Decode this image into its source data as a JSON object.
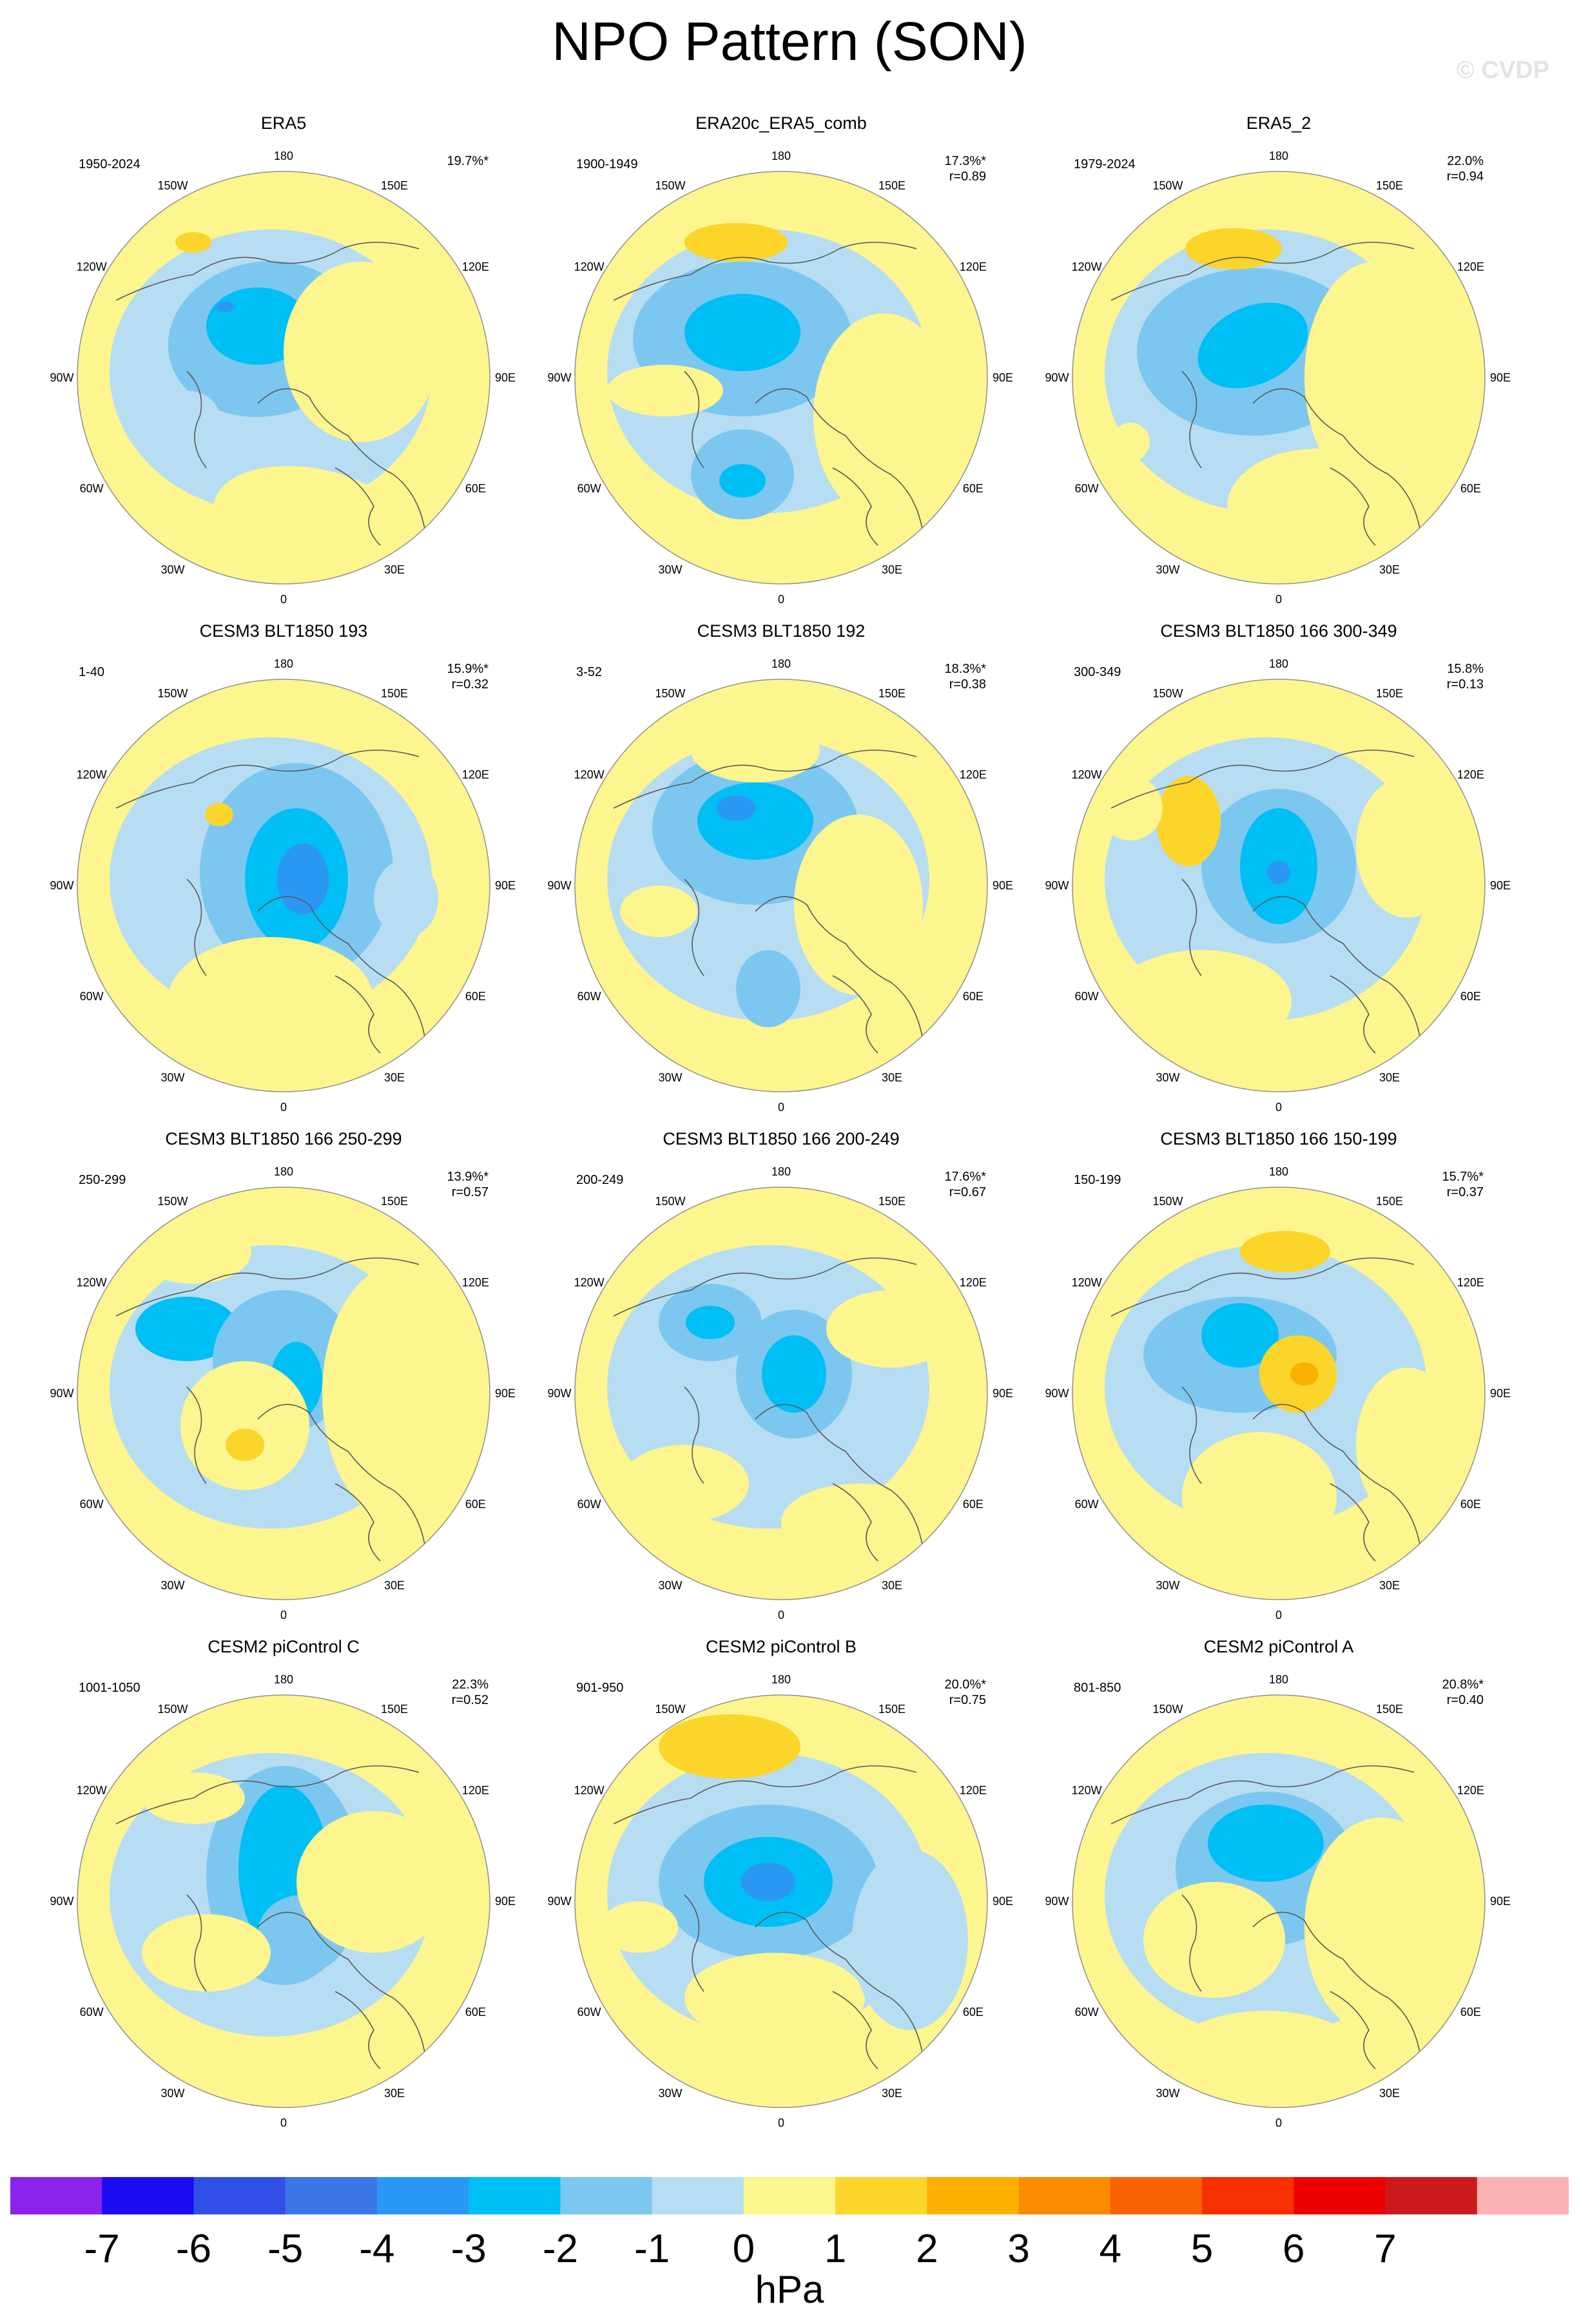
{
  "title": "NPO Pattern (SON)",
  "watermark": "© CVDP",
  "lon_labels": [
    "180",
    "150E",
    "120E",
    "90E",
    "60E",
    "30E",
    "0",
    "30W",
    "60W",
    "90W",
    "120W",
    "150W"
  ],
  "colors": {
    "-7": "#8b22ee",
    "-6": "#1b0cf2",
    "-5": "#2f4fe8",
    "-4": "#3b76e6",
    "-3": "#2a98f2",
    "-2": "#00bff5",
    "-1": "#7cc7f0",
    "0a": "#b7ddf3",
    "0b": "#fdf58e",
    "1": "#fcd52a",
    "2": "#fbb000",
    "3": "#fb8b00",
    "4": "#fa6100",
    "5": "#f82f00",
    "6": "#ee0000",
    "7": "#cc1a1a",
    "8": "#fbb2b2",
    "land": "#5a5a5a",
    "frame": "#909090"
  },
  "panels": [
    {
      "id": "era5",
      "title": "ERA5",
      "period": "1950-2024",
      "pct": "19.7%*",
      "r": ""
    },
    {
      "id": "era20c",
      "title": "ERA20c_ERA5_comb",
      "period": "1900-1949",
      "pct": "17.3%*",
      "r": "r=0.89"
    },
    {
      "id": "era5_2",
      "title": "ERA5_2",
      "period": "1979-2024",
      "pct": "22.0%",
      "r": "r=0.94"
    },
    {
      "id": "cesm3_193",
      "title": "CESM3 BLT1850 193",
      "period": "1-40",
      "pct": "15.9%*",
      "r": "r=0.32"
    },
    {
      "id": "cesm3_192",
      "title": "CESM3 BLT1850 192",
      "period": "3-52",
      "pct": "18.3%*",
      "r": "r=0.38"
    },
    {
      "id": "cesm3_166_300",
      "title": "CESM3 BLT1850 166 300-349",
      "period": "300-349",
      "pct": "15.8%",
      "r": "r=0.13"
    },
    {
      "id": "cesm3_166_250",
      "title": "CESM3 BLT1850 166 250-299",
      "period": "250-299",
      "pct": "13.9%*",
      "r": "r=0.57"
    },
    {
      "id": "cesm3_166_200",
      "title": "CESM3 BLT1850 166 200-249",
      "period": "200-249",
      "pct": "17.6%*",
      "r": "r=0.67"
    },
    {
      "id": "cesm3_166_150",
      "title": "CESM3 BLT1850 166 150-199",
      "period": "150-199",
      "pct": "15.7%*",
      "r": "r=0.37"
    },
    {
      "id": "cesm2_c",
      "title": "CESM2 piControl C",
      "period": "1001-1050",
      "pct": "22.3%",
      "r": "r=0.52"
    },
    {
      "id": "cesm2_b",
      "title": "CESM2 piControl B",
      "period": "901-950",
      "pct": "20.0%*",
      "r": "r=0.75"
    },
    {
      "id": "cesm2_a",
      "title": "CESM2 piControl A",
      "period": "801-850",
      "pct": "20.8%*",
      "r": "r=0.40"
    }
  ],
  "colorbar": {
    "ticks": [
      "-7",
      "-6",
      "-5",
      "-4",
      "-3",
      "-2",
      "-1",
      "0",
      "1",
      "2",
      "3",
      "4",
      "5",
      "6",
      "7"
    ],
    "units": "hPa"
  }
}
